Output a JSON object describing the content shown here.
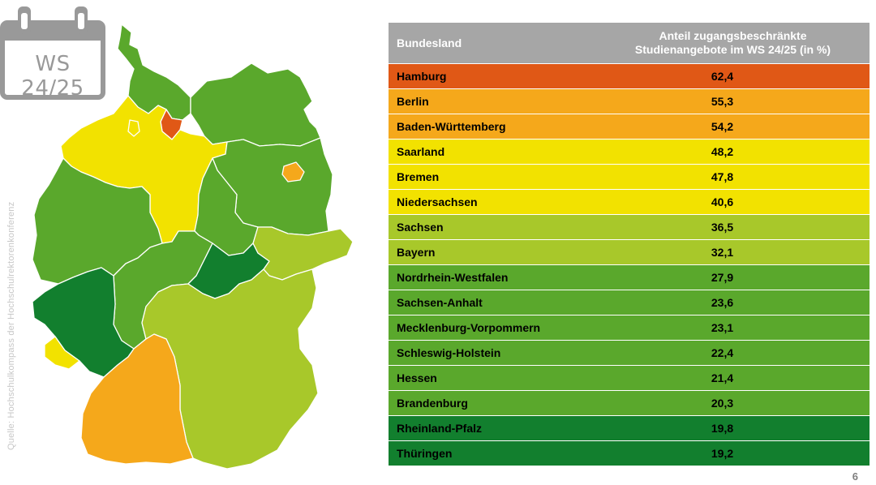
{
  "source_text": "Quelle: Hochschulkompass der Hochschulrektorenkonferenz",
  "calendar": {
    "label": "WS 24/25"
  },
  "colors": {
    "c62": "#e05816",
    "c55": "#f5a81b",
    "yellow": "#f2e200",
    "lime": "#a8c82a",
    "green": "#5aa82c",
    "dgreen": "#127f2e",
    "header": "#a6a6a6"
  },
  "map": {
    "regions": [
      {
        "name": "Schleswig-Holstein",
        "value": "22,4"
      },
      {
        "name": "Hamburg",
        "value": "62,4"
      },
      {
        "name": "Mecklenburg-Vorpommern",
        "value": "23,1"
      },
      {
        "name": "Niedersachsen",
        "value": "40,6"
      },
      {
        "name": "Bremen",
        "value": "47,8"
      },
      {
        "name": "Berlin",
        "value": "55,3"
      },
      {
        "name": "Brandenburg",
        "value": "20,3"
      },
      {
        "name": "Sachsen-Anhalt",
        "value": "23,6"
      },
      {
        "name": "Nordrhein-Westfalen",
        "value": "27,9"
      },
      {
        "name": "Hessen",
        "value": "21,4"
      },
      {
        "name": "Thüringen",
        "value": "19,2"
      },
      {
        "name": "Sachsen",
        "value": "36,5"
      },
      {
        "name": "Rheinland-Pfalz",
        "value": "19,8"
      },
      {
        "name": "Saarland",
        "value": "48,2"
      },
      {
        "name": "Baden-Württemberg",
        "value": "54,2"
      },
      {
        "name": "Bayern",
        "value": "32,1"
      }
    ]
  },
  "table": {
    "header_state": "Bundesland",
    "header_share_line1": "Anteil zugangsbeschränkte",
    "header_share_line2": "Studienangebote im WS 24/25 (in %)",
    "rows": [
      {
        "state": "Hamburg",
        "value": "62,4",
        "color": "#e05816"
      },
      {
        "state": "Berlin",
        "value": "55,3",
        "color": "#f5a81b"
      },
      {
        "state": "Baden-Württemberg",
        "value": "54,2",
        "color": "#f5a81b"
      },
      {
        "state": "Saarland",
        "value": "48,2",
        "color": "#f2e200"
      },
      {
        "state": "Bremen",
        "value": "47,8",
        "color": "#f2e200"
      },
      {
        "state": "Niedersachsen",
        "value": "40,6",
        "color": "#f2e200"
      },
      {
        "state": "Sachsen",
        "value": "36,5",
        "color": "#a8c82a"
      },
      {
        "state": "Bayern",
        "value": "32,1",
        "color": "#a8c82a"
      },
      {
        "state": "Nordrhein-Westfalen",
        "value": "27,9",
        "color": "#5aa82c"
      },
      {
        "state": "Sachsen-Anhalt",
        "value": "23,6",
        "color": "#5aa82c"
      },
      {
        "state": "Mecklenburg-Vorpommern",
        "value": "23,1",
        "color": "#5aa82c"
      },
      {
        "state": "Schleswig-Holstein",
        "value": "22,4",
        "color": "#5aa82c"
      },
      {
        "state": "Hessen",
        "value": "21,4",
        "color": "#5aa82c"
      },
      {
        "state": "Brandenburg",
        "value": "20,3",
        "color": "#5aa82c"
      },
      {
        "state": "Rheinland-Pfalz",
        "value": "19,8",
        "color": "#127f2e"
      },
      {
        "state": "Thüringen",
        "value": "19,2",
        "color": "#127f2e"
      }
    ]
  },
  "page_number": "6"
}
